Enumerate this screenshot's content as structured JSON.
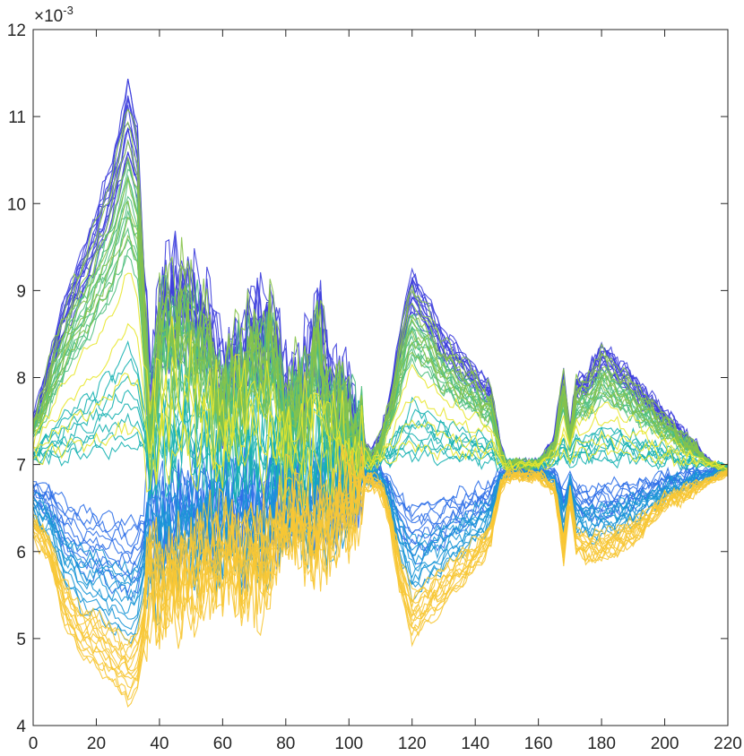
{
  "chart_data": {
    "type": "line",
    "title": "",
    "xlabel": "",
    "ylabel": "",
    "xlim": [
      0,
      220
    ],
    "ylim": [
      0.004,
      0.012
    ],
    "y_scale_exponent": -3,
    "y_exponent_label": {
      "base": "×10",
      "power": "-3"
    },
    "x_ticks": [
      0,
      20,
      40,
      60,
      80,
      100,
      120,
      140,
      160,
      180,
      200,
      220
    ],
    "y_ticks": [
      4,
      5,
      6,
      7,
      8,
      9,
      10,
      11,
      12
    ],
    "grid": false,
    "legend": "none",
    "series_count_approx": 80,
    "palette": [
      "#3e3fdd",
      "#2d6fe8",
      "#1a96d6",
      "#16b1b1",
      "#4fbf7d",
      "#86c34a",
      "#e8e72c",
      "#f7c734"
    ],
    "series_groups": [
      {
        "color": "#3e3fdd",
        "count": 14,
        "direction": 1,
        "scale": [
          0.8,
          1.0
        ]
      },
      {
        "color": "#2d6fe8",
        "count": 10,
        "direction": -1,
        "scale": [
          0.25,
          0.55
        ]
      },
      {
        "color": "#1a96d6",
        "count": 10,
        "direction": -1,
        "scale": [
          0.45,
          0.75
        ]
      },
      {
        "color": "#16b1b1",
        "count": 8,
        "direction": 1,
        "scale": [
          0.05,
          0.3
        ]
      },
      {
        "color": "#4fbf7d",
        "count": 12,
        "direction": 1,
        "scale": [
          0.55,
          0.8
        ]
      },
      {
        "color": "#86c34a",
        "count": 8,
        "direction": 1,
        "scale": [
          0.6,
          0.95
        ]
      },
      {
        "color": "#e8e72c",
        "count": 4,
        "direction": 1,
        "scale": [
          0.1,
          0.5
        ]
      },
      {
        "color": "#f7c734",
        "count": 14,
        "direction": -1,
        "scale": [
          0.75,
          1.0
        ]
      }
    ],
    "envelope_upper": {
      "x": [
        0,
        5,
        10,
        15,
        20,
        25,
        28,
        30,
        33,
        35,
        37,
        40,
        45,
        50,
        55,
        60,
        65,
        70,
        75,
        80,
        85,
        90,
        95,
        100,
        103,
        107,
        110,
        113,
        116,
        120,
        125,
        130,
        135,
        140,
        145,
        148,
        150,
        155,
        160,
        165,
        168,
        170,
        172,
        175,
        180,
        185,
        190,
        195,
        200,
        205,
        210,
        215,
        220
      ],
      "y": [
        7.5,
        8.2,
        8.9,
        9.4,
        9.9,
        10.5,
        11.0,
        11.4,
        10.9,
        9.3,
        7.6,
        8.9,
        9.1,
        9.0,
        8.7,
        8.0,
        8.3,
        8.6,
        8.7,
        7.8,
        7.9,
        8.6,
        7.8,
        7.7,
        7.3,
        7.1,
        7.3,
        7.8,
        8.5,
        9.2,
        8.9,
        8.5,
        8.3,
        8.1,
        7.9,
        7.2,
        7.0,
        7.0,
        7.0,
        7.3,
        8.1,
        7.4,
        8.0,
        8.0,
        8.4,
        8.2,
        8.0,
        7.8,
        7.6,
        7.4,
        7.2,
        7.0,
        6.9
      ]
    },
    "envelope_lower": {
      "x": [
        0,
        5,
        10,
        15,
        20,
        25,
        28,
        30,
        33,
        35,
        37,
        40,
        45,
        50,
        55,
        60,
        65,
        70,
        75,
        80,
        85,
        90,
        95,
        100,
        103,
        107,
        110,
        113,
        116,
        120,
        125,
        130,
        135,
        140,
        145,
        148,
        150,
        155,
        160,
        165,
        168,
        170,
        172,
        175,
        180,
        185,
        190,
        195,
        200,
        205,
        210,
        215,
        220
      ],
      "y": [
        6.2,
        5.9,
        5.2,
        4.8,
        4.7,
        4.5,
        4.35,
        4.3,
        4.4,
        4.9,
        5.6,
        5.3,
        5.5,
        5.6,
        5.7,
        5.8,
        5.7,
        5.7,
        5.8,
        6.3,
        6.2,
        6.1,
        6.3,
        6.5,
        6.7,
        6.8,
        6.7,
        6.3,
        5.6,
        5.0,
        5.2,
        5.4,
        5.6,
        5.8,
        6.1,
        6.7,
        6.85,
        6.85,
        6.85,
        6.7,
        5.9,
        6.6,
        6.0,
        5.9,
        5.9,
        6.0,
        6.1,
        6.3,
        6.5,
        6.6,
        6.7,
        6.8,
        6.9
      ]
    }
  }
}
